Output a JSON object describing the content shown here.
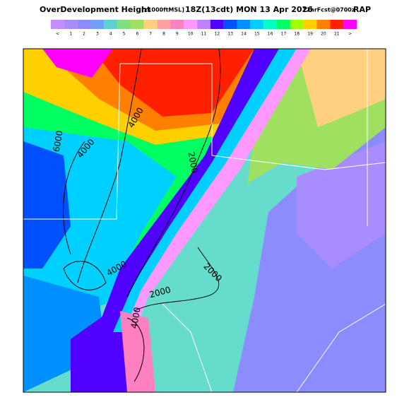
{
  "header": {
    "title": "OverDevelopment Height",
    "units": "[x1000ftMSL]",
    "valid": "18Z(13cdt) MON 13 Apr 2026",
    "forecast": "12hrFcst@0700z",
    "model": "RAP"
  },
  "legend": {
    "labels": [
      "<",
      "1",
      "2",
      "3",
      "4",
      "5",
      "6",
      "7",
      "8",
      "9",
      "10",
      "11",
      "12",
      "13",
      "14",
      "15",
      "16",
      "17",
      "18",
      "19",
      "20",
      "21",
      ">"
    ],
    "colors": [
      "#c78cff",
      "#a98cff",
      "#8c8cff",
      "#6ea0ff",
      "#5fd0d0",
      "#80e080",
      "#a0e060",
      "#ffd080",
      "#ffa0a0",
      "#ff80c0",
      "#ff99ff",
      "#c080ff",
      "#5000ff",
      "#0050ff",
      "#0090ff",
      "#00d0ff",
      "#00ffc0",
      "#00ff60",
      "#a0ff00",
      "#ffd000",
      "#ff8000",
      "#ff2000",
      "#ff00ff"
    ]
  },
  "contour_labels": [
    "6000",
    "4000",
    "4000",
    "2000",
    "2000",
    "2000",
    "4000",
    "4000"
  ]
}
